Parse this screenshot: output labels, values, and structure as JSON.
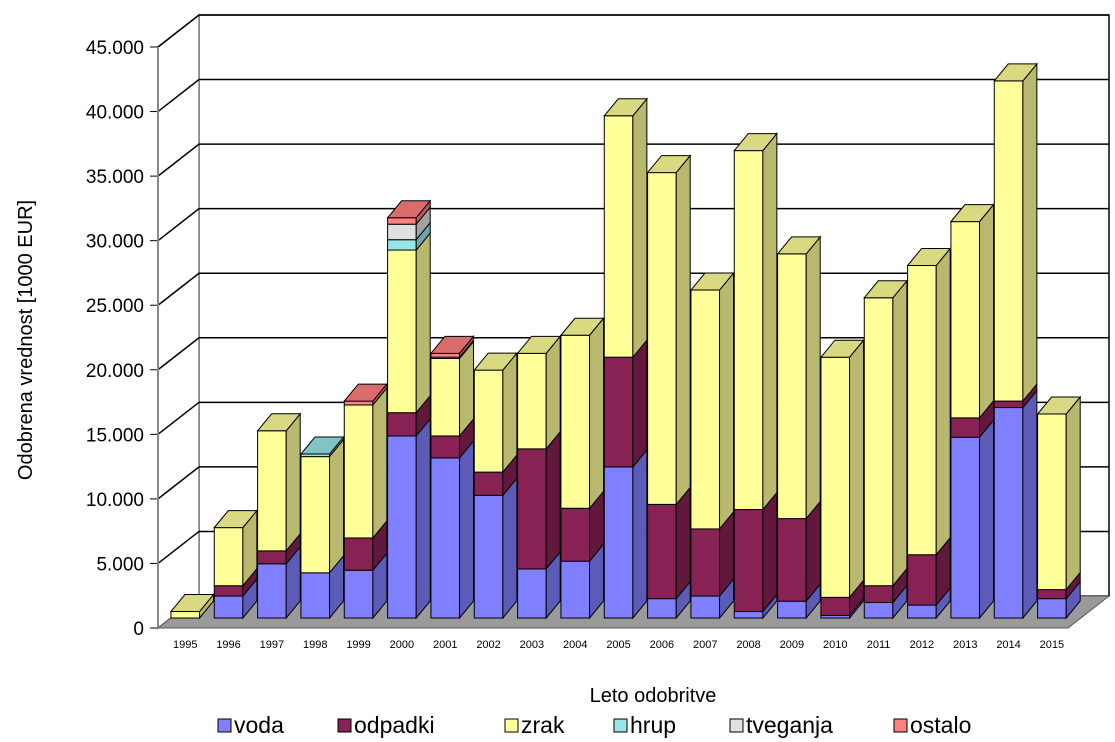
{
  "chart_data": {
    "type": "bar",
    "stacked": true,
    "three_d": true,
    "categories": [
      "1995",
      "1996",
      "1997",
      "1998",
      "1999",
      "2000",
      "2001",
      "2002",
      "2003",
      "2004",
      "2005",
      "2006",
      "2007",
      "2008",
      "2009",
      "2010",
      "2011",
      "2012",
      "2013",
      "2014",
      "2015"
    ],
    "series": [
      {
        "name": "voda",
        "color": "#8080ff",
        "values": [
          0,
          1700,
          4200,
          3500,
          3700,
          14100,
          12400,
          9500,
          3800,
          4400,
          11700,
          1500,
          1700,
          500,
          1300,
          200,
          1200,
          1000,
          14000,
          16300,
          1500
        ]
      },
      {
        "name": "odpadki",
        "color": "#882255",
        "values": [
          0,
          800,
          1000,
          0,
          2500,
          1800,
          1700,
          1800,
          9300,
          4100,
          8500,
          7300,
          5200,
          7900,
          6400,
          1400,
          1300,
          3900,
          1500,
          500,
          700
        ]
      },
      {
        "name": "zrak",
        "color": "#ffff99",
        "values": [
          500,
          4500,
          9300,
          9000,
          10300,
          12600,
          6000,
          7900,
          7400,
          13400,
          18700,
          25700,
          18500,
          27800,
          20500,
          18600,
          22300,
          22400,
          15200,
          24800,
          13600
        ]
      },
      {
        "name": "hrup",
        "color": "#99e6e6",
        "values": [
          0,
          0,
          0,
          200,
          0,
          800,
          0,
          0,
          0,
          0,
          0,
          0,
          0,
          0,
          0,
          0,
          0,
          0,
          0,
          0,
          0
        ]
      },
      {
        "name": "tveganja",
        "color": "#e0e0e0",
        "values": [
          0,
          0,
          0,
          0,
          0,
          1200,
          100,
          0,
          0,
          0,
          0,
          0,
          0,
          0,
          0,
          0,
          0,
          0,
          0,
          0,
          0
        ]
      },
      {
        "name": "ostalo",
        "color": "#ff8080",
        "values": [
          0,
          0,
          0,
          0,
          300,
          500,
          300,
          0,
          0,
          0,
          0,
          0,
          0,
          0,
          0,
          0,
          0,
          0,
          0,
          0,
          0
        ]
      }
    ],
    "ylim": [
      0,
      45000
    ],
    "yticks": [
      0,
      5000,
      10000,
      15000,
      20000,
      25000,
      30000,
      35000,
      40000,
      45000
    ],
    "ytick_labels": [
      "0",
      "5.000",
      "10.000",
      "15.000",
      "20.000",
      "25.000",
      "30.000",
      "35.000",
      "40.000",
      "45.000"
    ],
    "xlabel": "Leto odobritve",
    "ylabel": "Odobrena vrednost [1000 EUR]",
    "grid": true,
    "legend_position": "bottom"
  }
}
